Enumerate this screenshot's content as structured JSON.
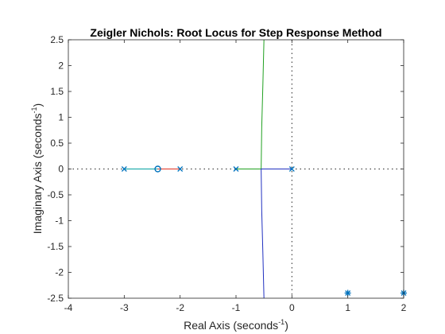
{
  "chart_data": {
    "type": "line",
    "title": "Zeigler Nichols: Root Locus for Step Response Method",
    "xlabel": "Real Axis (seconds",
    "ylabel": "Imaginary Axis (seconds",
    "label_superscript": "-1",
    "label_close": ")",
    "xlim": [
      -4,
      2
    ],
    "ylim": [
      -2.5,
      2.5
    ],
    "x_ticks": [
      -4,
      -3,
      -2,
      -1,
      0,
      1,
      2
    ],
    "x_tick_labels": [
      "-4",
      "-3",
      "-2",
      "-1",
      "0",
      "1",
      "2"
    ],
    "y_ticks": [
      -2.5,
      -2,
      -1.5,
      -1,
      -0.5,
      0,
      0.5,
      1,
      1.5,
      2,
      2.5
    ],
    "y_tick_labels": [
      "-2.5",
      "-2",
      "-1.5",
      "-1",
      "-0.5",
      "0",
      "0.5",
      "1",
      "1.5",
      "2",
      "2.5"
    ],
    "grid": false,
    "reference_lines": [
      "x = 0",
      "y = 0"
    ],
    "poles": [
      [
        -3,
        0
      ],
      [
        -2,
        0
      ],
      [
        -1,
        0
      ],
      [
        0,
        0
      ]
    ],
    "zeros": [
      [
        -2.4,
        0
      ]
    ],
    "off_axis_markers": [
      [
        1,
        -2.4
      ],
      [
        2,
        -2.4
      ]
    ],
    "series": [
      {
        "color": "#00a0a0",
        "points": [
          [
            -3,
            0
          ],
          [
            -2.4,
            0
          ]
        ]
      },
      {
        "color": "#e03020",
        "points": [
          [
            -2,
            0
          ],
          [
            -2.4,
            0
          ]
        ]
      },
      {
        "color": "#20a020",
        "points": [
          [
            -1,
            0
          ],
          [
            -0.55,
            0
          ],
          [
            -0.54,
            0.8
          ],
          [
            -0.52,
            1.6
          ],
          [
            -0.5,
            2.5
          ]
        ]
      },
      {
        "color": "#2030c0",
        "points": [
          [
            0,
            0
          ],
          [
            -0.55,
            0
          ],
          [
            -0.54,
            -0.8
          ],
          [
            -0.52,
            -1.6
          ],
          [
            -0.5,
            -2.5
          ]
        ]
      }
    ],
    "marker_color": "#0072bd",
    "axis_color": "#262626",
    "reference_line_color": "#262626"
  }
}
